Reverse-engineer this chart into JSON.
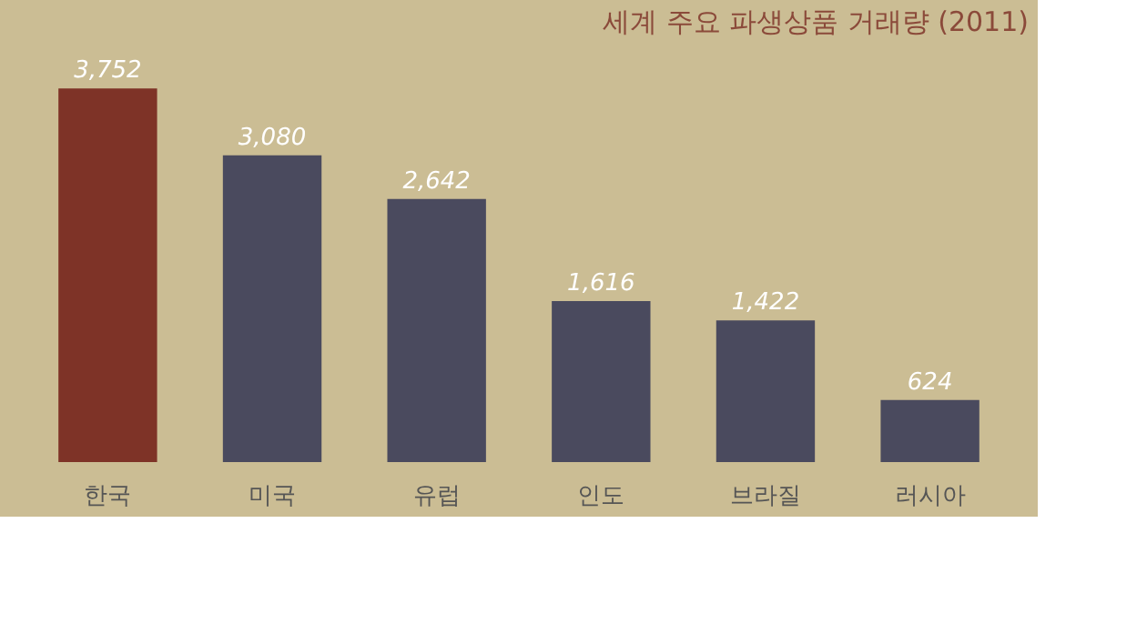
{
  "chart_data": {
    "type": "bar",
    "title": "세계 주요 파생상품 거래량 (2011)",
    "categories": [
      "한국",
      "미국",
      "유럽",
      "인도",
      "브라질",
      "러시아"
    ],
    "values": [
      3752,
      3080,
      2642,
      1616,
      1422,
      624
    ],
    "colors": [
      "#7e3327",
      "#4a4a5e",
      "#4a4a5e",
      "#4a4a5e",
      "#4a4a5e",
      "#4a4a5e"
    ],
    "value_labels": [
      "3,752",
      "3,080",
      "2,642",
      "1,616",
      "1,422",
      "624"
    ]
  }
}
